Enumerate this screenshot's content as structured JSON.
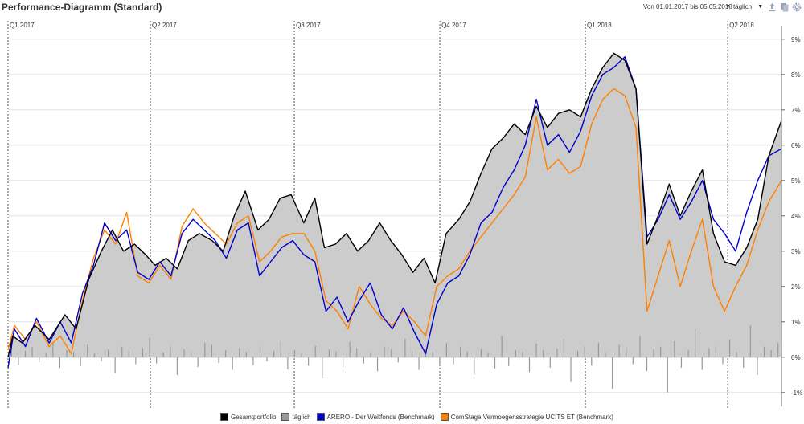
{
  "header": {
    "title": "Performance-Diagramm (Standard)",
    "range_label": "Von 01.01.2017 bis 05.05.2018",
    "period_label": "täglich",
    "tools": [
      "export-icon",
      "document-icon",
      "settings-icon"
    ]
  },
  "chart_data": {
    "type": "area",
    "title": "Performance-Diagramm (Standard)",
    "x_start": "2017-01-01",
    "x_end": "2018-05-05",
    "quarters": [
      {
        "label": "Q1 2017",
        "date": "2017-01-01"
      },
      {
        "label": "Q2 2017",
        "date": "2017-04-01"
      },
      {
        "label": "Q3 2017",
        "date": "2017-07-01"
      },
      {
        "label": "Q4 2017",
        "date": "2017-10-01"
      },
      {
        "label": "Q1 2018",
        "date": "2018-01-01"
      },
      {
        "label": "Q2 2018",
        "date": "2018-04-01"
      }
    ],
    "ylim": [
      -1.3,
      9.2
    ],
    "yticks": [
      -1,
      0,
      1,
      2,
      3,
      4,
      5,
      6,
      7,
      8,
      9
    ],
    "ytick_labels": [
      "-1%",
      "0%",
      "1%",
      "2%",
      "3%",
      "4%",
      "5%",
      "6%",
      "7%",
      "8%",
      "9%"
    ],
    "legend_position": "bottom",
    "series": [
      {
        "name": "Gesamtportfolio",
        "color": "#000000",
        "fill": "#cccccc",
        "points": [
          [
            "2017-01-01",
            0.0
          ],
          [
            "2017-01-04",
            0.6
          ],
          [
            "2017-01-10",
            0.4
          ],
          [
            "2017-01-18",
            0.9
          ],
          [
            "2017-01-27",
            0.5
          ],
          [
            "2017-02-06",
            1.2
          ],
          [
            "2017-02-13",
            0.8
          ],
          [
            "2017-02-21",
            2.2
          ],
          [
            "2017-03-01",
            3.0
          ],
          [
            "2017-03-08",
            3.6
          ],
          [
            "2017-03-15",
            3.0
          ],
          [
            "2017-03-22",
            3.2
          ],
          [
            "2017-03-29",
            2.9
          ],
          [
            "2017-04-04",
            2.6
          ],
          [
            "2017-04-11",
            2.8
          ],
          [
            "2017-04-18",
            2.5
          ],
          [
            "2017-04-25",
            3.3
          ],
          [
            "2017-05-02",
            3.5
          ],
          [
            "2017-05-10",
            3.3
          ],
          [
            "2017-05-17",
            3.0
          ],
          [
            "2017-05-24",
            4.0
          ],
          [
            "2017-05-31",
            4.7
          ],
          [
            "2017-06-08",
            3.6
          ],
          [
            "2017-06-15",
            3.9
          ],
          [
            "2017-06-22",
            4.5
          ],
          [
            "2017-06-29",
            4.6
          ],
          [
            "2017-07-07",
            3.8
          ],
          [
            "2017-07-14",
            4.5
          ],
          [
            "2017-07-20",
            3.1
          ],
          [
            "2017-07-27",
            3.2
          ],
          [
            "2017-08-03",
            3.5
          ],
          [
            "2017-08-10",
            3.0
          ],
          [
            "2017-08-17",
            3.3
          ],
          [
            "2017-08-24",
            3.8
          ],
          [
            "2017-08-31",
            3.3
          ],
          [
            "2017-09-07",
            2.9
          ],
          [
            "2017-09-14",
            2.4
          ],
          [
            "2017-09-21",
            2.8
          ],
          [
            "2017-09-28",
            2.1
          ],
          [
            "2017-10-05",
            3.5
          ],
          [
            "2017-10-13",
            3.9
          ],
          [
            "2017-10-20",
            4.4
          ],
          [
            "2017-10-27",
            5.2
          ],
          [
            "2017-11-03",
            5.9
          ],
          [
            "2017-11-10",
            6.2
          ],
          [
            "2017-11-17",
            6.6
          ],
          [
            "2017-11-24",
            6.3
          ],
          [
            "2017-12-01",
            7.1
          ],
          [
            "2017-12-08",
            6.5
          ],
          [
            "2017-12-15",
            6.9
          ],
          [
            "2017-12-22",
            7.0
          ],
          [
            "2017-12-29",
            6.8
          ],
          [
            "2018-01-05",
            7.6
          ],
          [
            "2018-01-12",
            8.2
          ],
          [
            "2018-01-19",
            8.6
          ],
          [
            "2018-01-26",
            8.4
          ],
          [
            "2018-02-02",
            7.6
          ],
          [
            "2018-02-09",
            3.2
          ],
          [
            "2018-02-16",
            4.0
          ],
          [
            "2018-02-23",
            4.9
          ],
          [
            "2018-03-02",
            4.0
          ],
          [
            "2018-03-09",
            4.7
          ],
          [
            "2018-03-16",
            5.3
          ],
          [
            "2018-03-23",
            3.5
          ],
          [
            "2018-03-30",
            2.7
          ],
          [
            "2018-04-06",
            2.6
          ],
          [
            "2018-04-13",
            3.1
          ],
          [
            "2018-04-20",
            3.9
          ],
          [
            "2018-04-27",
            5.7
          ],
          [
            "2018-05-05",
            6.7
          ]
        ]
      },
      {
        "name": "täglich",
        "color": "#999999",
        "fill": "#999999",
        "bars": [
          0.35,
          -0.22,
          0.18,
          0.28,
          -0.15,
          0.12,
          0.42,
          -0.3,
          0.2,
          0.15,
          -0.25,
          0.36,
          0.1,
          -0.12,
          0.22,
          -0.45,
          0.3,
          0.18,
          -0.2,
          0.25,
          0.55,
          -0.18,
          0.14,
          0.3,
          -0.5,
          0.22,
          0.12,
          -0.28,
          0.4,
          0.35,
          -0.16,
          0.2,
          -0.36,
          0.25,
          0.15,
          -0.22,
          0.3,
          -0.12,
          0.18,
          0.46,
          -0.34,
          0.2,
          0.1,
          -0.24,
          0.32,
          -0.6,
          0.22,
          0.16,
          -0.3,
          0.44,
          0.25,
          -0.18,
          0.12,
          -0.4,
          0.3,
          0.22,
          -0.15,
          0.52,
          0.18,
          -0.36,
          0.2,
          0.14,
          -0.26,
          0.4,
          -0.2,
          0.3,
          0.16,
          -0.5,
          0.24,
          0.12,
          -0.32,
          0.6,
          -0.25,
          0.2,
          0.15,
          -0.42,
          0.38,
          0.2,
          -0.3,
          0.25,
          0.5,
          -0.7,
          0.18,
          0.3,
          -0.24,
          0.4,
          0.12,
          -0.9,
          0.35,
          0.28,
          -0.2,
          0.6,
          -0.4,
          0.22,
          0.3,
          -1.0,
          0.45,
          -0.3,
          0.2,
          0.8,
          -0.36,
          0.25,
          0.3,
          -0.2,
          0.5,
          0.15,
          -0.3,
          0.9,
          -0.5,
          0.3,
          0.2,
          0.4
        ]
      },
      {
        "name": "ARERO - Der Weltfonds (Benchmark)",
        "color": "#0000cc",
        "points": [
          [
            "2017-01-01",
            -0.3
          ],
          [
            "2017-01-05",
            0.8
          ],
          [
            "2017-01-12",
            0.3
          ],
          [
            "2017-01-19",
            1.1
          ],
          [
            "2017-01-27",
            0.4
          ],
          [
            "2017-02-03",
            1.0
          ],
          [
            "2017-02-10",
            0.4
          ],
          [
            "2017-02-17",
            1.8
          ],
          [
            "2017-02-24",
            2.6
          ],
          [
            "2017-03-03",
            3.8
          ],
          [
            "2017-03-10",
            3.3
          ],
          [
            "2017-03-17",
            3.6
          ],
          [
            "2017-03-24",
            2.4
          ],
          [
            "2017-03-31",
            2.2
          ],
          [
            "2017-04-07",
            2.7
          ],
          [
            "2017-04-14",
            2.3
          ],
          [
            "2017-04-21",
            3.5
          ],
          [
            "2017-04-28",
            3.9
          ],
          [
            "2017-05-05",
            3.6
          ],
          [
            "2017-05-12",
            3.3
          ],
          [
            "2017-05-19",
            2.8
          ],
          [
            "2017-05-26",
            3.6
          ],
          [
            "2017-06-02",
            3.8
          ],
          [
            "2017-06-09",
            2.3
          ],
          [
            "2017-06-16",
            2.7
          ],
          [
            "2017-06-23",
            3.1
          ],
          [
            "2017-06-30",
            3.3
          ],
          [
            "2017-07-07",
            2.9
          ],
          [
            "2017-07-14",
            2.7
          ],
          [
            "2017-07-21",
            1.3
          ],
          [
            "2017-07-28",
            1.7
          ],
          [
            "2017-08-04",
            1.0
          ],
          [
            "2017-08-11",
            1.6
          ],
          [
            "2017-08-18",
            2.1
          ],
          [
            "2017-08-25",
            1.2
          ],
          [
            "2017-09-01",
            0.8
          ],
          [
            "2017-09-08",
            1.4
          ],
          [
            "2017-09-15",
            0.7
          ],
          [
            "2017-09-22",
            0.1
          ],
          [
            "2017-09-29",
            1.5
          ],
          [
            "2017-10-06",
            2.1
          ],
          [
            "2017-10-13",
            2.3
          ],
          [
            "2017-10-20",
            2.9
          ],
          [
            "2017-10-27",
            3.8
          ],
          [
            "2017-11-03",
            4.1
          ],
          [
            "2017-11-10",
            4.8
          ],
          [
            "2017-11-17",
            5.3
          ],
          [
            "2017-11-24",
            6.0
          ],
          [
            "2017-12-01",
            7.3
          ],
          [
            "2017-12-08",
            6.0
          ],
          [
            "2017-12-15",
            6.3
          ],
          [
            "2017-12-22",
            5.8
          ],
          [
            "2017-12-29",
            6.4
          ],
          [
            "2018-01-05",
            7.4
          ],
          [
            "2018-01-12",
            8.0
          ],
          [
            "2018-01-19",
            8.2
          ],
          [
            "2018-01-26",
            8.5
          ],
          [
            "2018-02-02",
            7.6
          ],
          [
            "2018-02-09",
            3.4
          ],
          [
            "2018-02-16",
            3.9
          ],
          [
            "2018-02-23",
            4.6
          ],
          [
            "2018-03-02",
            3.9
          ],
          [
            "2018-03-09",
            4.4
          ],
          [
            "2018-03-16",
            5.0
          ],
          [
            "2018-03-23",
            3.9
          ],
          [
            "2018-03-30",
            3.5
          ],
          [
            "2018-04-06",
            3.0
          ],
          [
            "2018-04-13",
            4.1
          ],
          [
            "2018-04-20",
            5.0
          ],
          [
            "2018-04-27",
            5.7
          ],
          [
            "2018-05-05",
            5.9
          ]
        ]
      },
      {
        "name": "ComStage Vermoegensstrategie UCITS ET (Benchmark)",
        "color": "#ff8000",
        "points": [
          [
            "2017-01-01",
            0.2
          ],
          [
            "2017-01-05",
            0.9
          ],
          [
            "2017-01-12",
            0.5
          ],
          [
            "2017-01-19",
            1.0
          ],
          [
            "2017-01-27",
            0.3
          ],
          [
            "2017-02-03",
            0.6
          ],
          [
            "2017-02-10",
            0.1
          ],
          [
            "2017-02-17",
            1.6
          ],
          [
            "2017-02-24",
            2.8
          ],
          [
            "2017-03-03",
            3.6
          ],
          [
            "2017-03-10",
            3.2
          ],
          [
            "2017-03-17",
            4.1
          ],
          [
            "2017-03-24",
            2.3
          ],
          [
            "2017-03-31",
            2.1
          ],
          [
            "2017-04-07",
            2.6
          ],
          [
            "2017-04-14",
            2.2
          ],
          [
            "2017-04-21",
            3.7
          ],
          [
            "2017-04-28",
            4.2
          ],
          [
            "2017-05-05",
            3.8
          ],
          [
            "2017-05-12",
            3.5
          ],
          [
            "2017-05-19",
            3.2
          ],
          [
            "2017-05-26",
            3.8
          ],
          [
            "2017-06-02",
            4.0
          ],
          [
            "2017-06-09",
            2.7
          ],
          [
            "2017-06-16",
            3.0
          ],
          [
            "2017-06-23",
            3.4
          ],
          [
            "2017-06-30",
            3.5
          ],
          [
            "2017-07-07",
            3.5
          ],
          [
            "2017-07-14",
            3.0
          ],
          [
            "2017-07-21",
            1.6
          ],
          [
            "2017-07-28",
            1.3
          ],
          [
            "2017-08-04",
            0.8
          ],
          [
            "2017-08-11",
            2.0
          ],
          [
            "2017-08-18",
            1.5
          ],
          [
            "2017-08-25",
            1.1
          ],
          [
            "2017-09-01",
            0.9
          ],
          [
            "2017-09-08",
            1.3
          ],
          [
            "2017-09-15",
            1.0
          ],
          [
            "2017-09-22",
            0.6
          ],
          [
            "2017-09-29",
            2.0
          ],
          [
            "2017-10-06",
            2.3
          ],
          [
            "2017-10-13",
            2.5
          ],
          [
            "2017-10-20",
            3.0
          ],
          [
            "2017-10-27",
            3.4
          ],
          [
            "2017-11-03",
            3.8
          ],
          [
            "2017-11-10",
            4.2
          ],
          [
            "2017-11-17",
            4.6
          ],
          [
            "2017-11-24",
            5.1
          ],
          [
            "2017-12-01",
            6.8
          ],
          [
            "2017-12-08",
            5.3
          ],
          [
            "2017-12-15",
            5.6
          ],
          [
            "2017-12-22",
            5.2
          ],
          [
            "2017-12-29",
            5.4
          ],
          [
            "2018-01-05",
            6.6
          ],
          [
            "2018-01-12",
            7.3
          ],
          [
            "2018-01-19",
            7.6
          ],
          [
            "2018-01-26",
            7.4
          ],
          [
            "2018-02-02",
            6.5
          ],
          [
            "2018-02-09",
            1.3
          ],
          [
            "2018-02-16",
            2.3
          ],
          [
            "2018-02-23",
            3.3
          ],
          [
            "2018-03-02",
            2.0
          ],
          [
            "2018-03-09",
            3.0
          ],
          [
            "2018-03-16",
            3.9
          ],
          [
            "2018-03-23",
            2.0
          ],
          [
            "2018-03-30",
            1.3
          ],
          [
            "2018-04-06",
            2.0
          ],
          [
            "2018-04-13",
            2.6
          ],
          [
            "2018-04-20",
            3.6
          ],
          [
            "2018-04-27",
            4.4
          ],
          [
            "2018-05-05",
            5.0
          ]
        ]
      }
    ]
  }
}
